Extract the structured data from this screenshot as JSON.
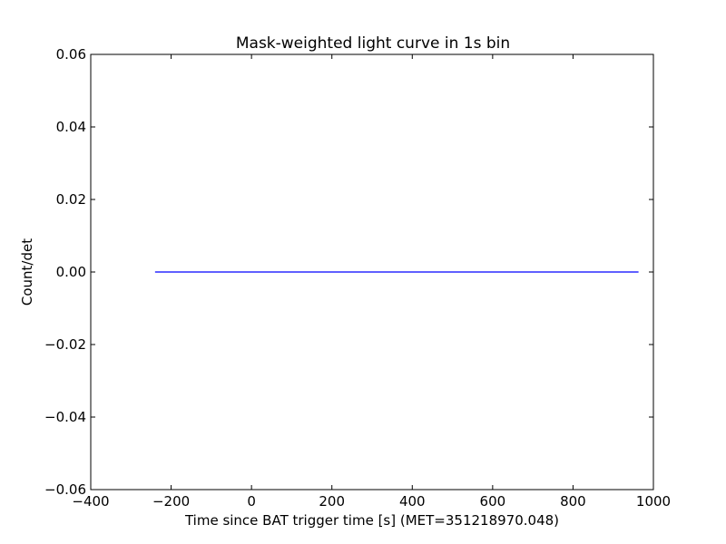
{
  "chart_data": {
    "type": "line",
    "title": "Mask-weighted light curve in 1s bin",
    "xlabel": "Time since BAT trigger time [s] (MET=351218970.048)",
    "ylabel": "Count/det",
    "xlim": [
      -400,
      1000
    ],
    "ylim": [
      -0.06,
      0.06
    ],
    "x_ticks": [
      -400,
      -200,
      0,
      200,
      400,
      600,
      800,
      1000
    ],
    "x_tick_labels": [
      "−400",
      "−200",
      "0",
      "200",
      "400",
      "600",
      "800",
      "1000"
    ],
    "y_ticks": [
      -0.06,
      -0.04,
      -0.02,
      0.0,
      0.02,
      0.04,
      0.06
    ],
    "y_tick_labels": [
      "−0.06",
      "−0.04",
      "−0.02",
      "0.00",
      "0.02",
      "0.04",
      "0.06"
    ],
    "grid": false,
    "series": [
      {
        "color": "#0000ff",
        "x": [
          -240,
          963
        ],
        "y": [
          0.0,
          0.0
        ]
      }
    ]
  }
}
